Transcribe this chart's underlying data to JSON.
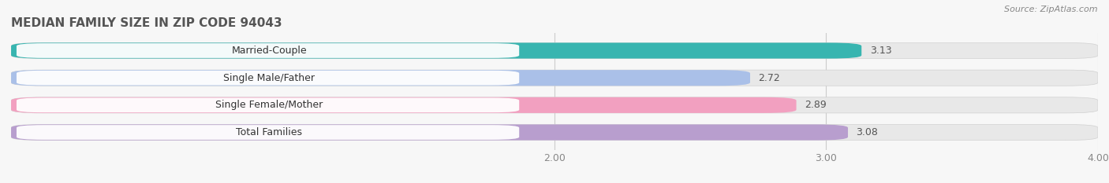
{
  "title": "MEDIAN FAMILY SIZE IN ZIP CODE 94043",
  "source": "Source: ZipAtlas.com",
  "categories": [
    "Married-Couple",
    "Single Male/Father",
    "Single Female/Mother",
    "Total Families"
  ],
  "values": [
    3.13,
    2.72,
    2.89,
    3.08
  ],
  "bar_colors": [
    "#38b5b0",
    "#aac0e8",
    "#f2a0c0",
    "#b89ece"
  ],
  "xlim": [
    0.0,
    4.0
  ],
  "xaxis_min": 2.0,
  "xaxis_max": 4.0,
  "xticks": [
    2.0,
    3.0,
    4.0
  ],
  "xtick_labels": [
    "2.00",
    "3.00",
    "4.00"
  ],
  "bg_color": "#f7f7f7",
  "bar_bg_color": "#e8e8e8",
  "title_fontsize": 11,
  "tick_fontsize": 9,
  "value_fontsize": 9,
  "label_fontsize": 9,
  "bar_height": 0.58,
  "row_sep_color": "#ffffff"
}
